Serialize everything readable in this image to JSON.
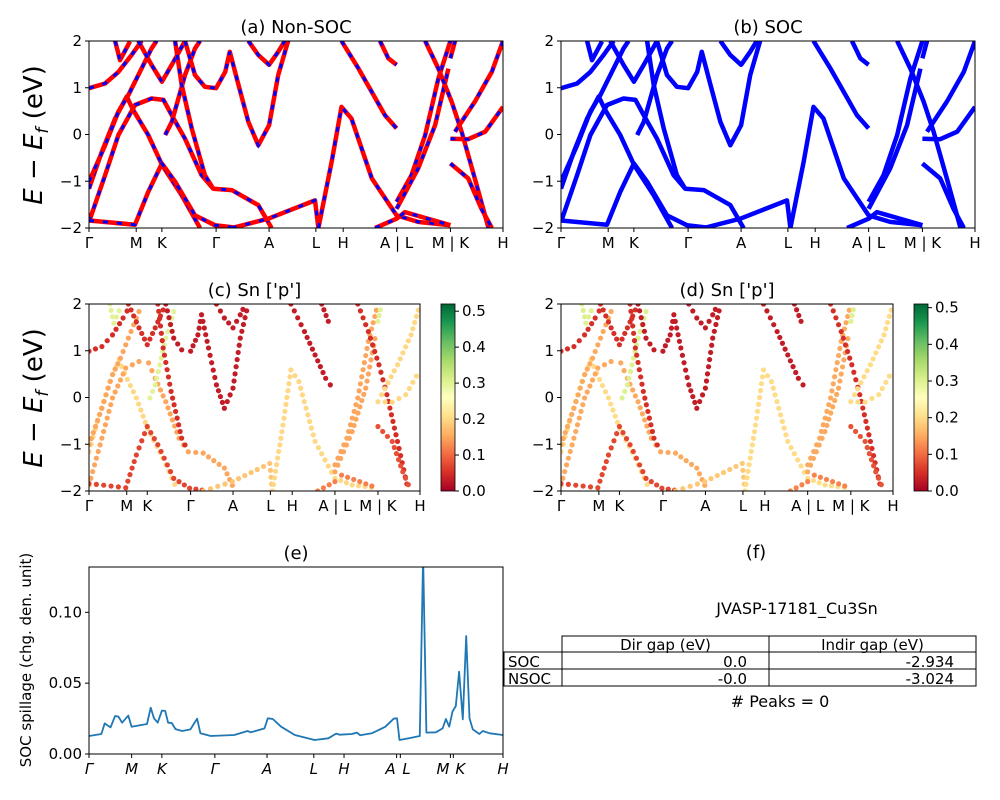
{
  "chart_data": [
    {
      "panel": "a",
      "type": "line",
      "title": "(a) Non-SOC",
      "ylabel_parts": [
        "E − E",
        "f",
        " (eV)"
      ],
      "ylim": [
        -2,
        2
      ],
      "yticks": [
        {
          "v": -2,
          "label": "−2"
        },
        {
          "v": -1,
          "label": "−1"
        },
        {
          "v": 0,
          "label": "0"
        },
        {
          "v": 1,
          "label": "1"
        },
        {
          "v": 2,
          "label": "2"
        }
      ],
      "xticks": [
        {
          "k": 0,
          "label": "Γ"
        },
        {
          "k": 0.114,
          "label": "M"
        },
        {
          "k": 0.176,
          "label": "K"
        },
        {
          "k": 0.307,
          "label": "Γ"
        },
        {
          "k": 0.435,
          "label": "A"
        },
        {
          "k": 0.548,
          "label": "L"
        },
        {
          "k": 0.614,
          "label": "H"
        },
        {
          "k": 0.743,
          "label": "A | L"
        },
        {
          "k": 0.873,
          "label": "M | K"
        },
        {
          "k": 1.0,
          "label": "H"
        }
      ],
      "colors": {
        "line": "#ff0000",
        "dash": "#0000ff"
      },
      "bands": [
        {
          "k": [
            0,
            0.039,
            0.071,
            0.103,
            0.127
          ],
          "E": [
            0.99,
            1.09,
            1.34,
            1.7,
            2.0
          ],
          "sn_p": 0.05
        },
        {
          "k": [
            0,
            0.031,
            0.063,
            0.091,
            0.107,
            0.143,
            0.177,
            0.224,
            0.268
          ],
          "E": [
            -1.16,
            -0.37,
            0.34,
            0.81,
            0.52,
            -0.01,
            -0.66,
            -1.3,
            -2.0
          ],
          "sn_p": 0.2
        },
        {
          "k": [
            0,
            0.039,
            0.071,
            0.111,
            0.151,
            0.18,
            0.2,
            0.232,
            0.272,
            0.3,
            0.345,
            0.409,
            0.441
          ],
          "E": [
            -1.87,
            -0.87,
            -0.01,
            0.63,
            0.77,
            0.74,
            0.41,
            -0.09,
            -0.87,
            -1.16,
            -1.19,
            -1.51,
            -2.0
          ],
          "sn_p": 0.15
        },
        {
          "k": [
            0,
            0.111,
            0.143,
            0.176,
            0.208,
            0.256,
            0.304,
            0.361
          ],
          "E": [
            -1.84,
            -1.93,
            -1.23,
            -0.62,
            -1.01,
            -1.73,
            -1.94,
            -2.0
          ],
          "sn_p": 0.07
        },
        {
          "k": [
            0,
            0.039,
            0.071,
            0.095,
            0.119,
            0.151,
            0.163
          ],
          "E": [
            -1.01,
            -0.23,
            0.49,
            0.84,
            1.27,
            1.84,
            2.0
          ],
          "sn_p": 0.15
        },
        {
          "k": [
            0.063,
            0.075,
            0.099
          ],
          "E": [
            2.0,
            1.59,
            1.99
          ],
          "sn_p": 0.3
        },
        {
          "k": [
            0.119,
            0.151,
            0.176,
            0.2,
            0.232
          ],
          "E": [
            2.0,
            1.49,
            1.13,
            1.49,
            2.0
          ],
          "sn_p": 0.05
        },
        {
          "k": [
            0.184,
            0.2,
            0.232,
            0.256,
            0.268
          ],
          "E": [
            -0.01,
            0.27,
            1.27,
            1.84,
            2.0
          ],
          "sn_p": 0.3
        },
        {
          "k": [
            0.208,
            0.224,
            0.248,
            0.28,
            0.3
          ],
          "E": [
            2.0,
            1.06,
            0.13,
            -0.87,
            -1.16
          ],
          "sn_p": 0.05
        },
        {
          "k": [
            0.232,
            0.256,
            0.28,
            0.307,
            0.329,
            0.34,
            0.361,
            0.385,
            0.409,
            0.435,
            0.457,
            0.481
          ],
          "E": [
            2.0,
            1.27,
            1.02,
            0.99,
            1.34,
            1.77,
            1.06,
            0.27,
            -0.23,
            0.2,
            1.27,
            2.0
          ],
          "sn_p": 0.03
        },
        {
          "k": [
            0.385,
            0.409,
            0.435,
            0.457,
            0.473
          ],
          "E": [
            2.0,
            1.7,
            1.49,
            1.77,
            2.0
          ],
          "sn_p": 0.03
        },
        {
          "k": [
            0.345,
            0.433,
            0.546,
            0.554
          ],
          "E": [
            -2.0,
            -1.8,
            -1.41,
            -2.0
          ],
          "sn_p": 0.18
        },
        {
          "k": [
            0.554,
            0.586,
            0.61,
            0.634,
            0.683,
            0.743,
            0.795,
            0.873
          ],
          "E": [
            -2.0,
            -0.59,
            0.59,
            0.34,
            -0.94,
            -1.73,
            -1.87,
            -1.94
          ],
          "sn_p": 0.2
        },
        {
          "k": [
            0.61,
            0.651,
            0.683,
            0.715,
            0.743
          ],
          "E": [
            2.0,
            1.41,
            0.91,
            0.41,
            0.13
          ],
          "sn_p": 0.03
        },
        {
          "k": [
            0.703,
            0.723,
            0.743
          ],
          "E": [
            2.0,
            1.63,
            1.49
          ],
          "sn_p": 0.03
        },
        {
          "k": [
            0.743,
            0.779,
            0.812,
            0.844,
            0.873
          ],
          "E": [
            -1.44,
            -0.87,
            -0.01,
            1.2,
            2.0
          ],
          "sn_p": 0.15
        },
        {
          "k": [
            0.743,
            0.795,
            0.836,
            0.868
          ],
          "E": [
            -1.59,
            -0.73,
            0.2,
            1.41
          ],
          "sn_p": 0.15
        },
        {
          "k": [
            0.812,
            0.844,
            0.876,
            0.9,
            0.932,
            0.965
          ],
          "E": [
            2.0,
            1.41,
            0.7,
            0.06,
            -0.94,
            -2.0
          ],
          "sn_p": 0.05
        },
        {
          "k": [
            0.873,
            0.916,
            0.957,
            1.0
          ],
          "E": [
            -0.09,
            -0.1,
            0.06,
            0.59
          ],
          "sn_p": 0.2
        },
        {
          "k": [
            0.873,
            0.916,
            0.948,
            0.973
          ],
          "E": [
            -0.62,
            -0.94,
            -1.59,
            -2.0
          ],
          "sn_p": 0.08
        },
        {
          "k": [
            0.884,
            0.932,
            0.973,
            1.0
          ],
          "E": [
            0.06,
            0.7,
            1.34,
            2.0
          ],
          "sn_p": 0.2
        },
        {
          "k": [
            0.873,
            0.884
          ],
          "E": [
            1.63,
            2.0
          ],
          "sn_p": 0.3
        },
        {
          "k": [
            0.691,
            0.743,
            0.763,
            0.873
          ],
          "E": [
            -2.0,
            -1.8,
            -1.66,
            -1.94
          ],
          "sn_p": 0.12
        }
      ]
    },
    {
      "panel": "b",
      "type": "line",
      "title": "(b) SOC",
      "bands_from_panel": "a",
      "colors": {
        "line": "#0000ff"
      }
    },
    {
      "panel": "c",
      "type": "scatter",
      "title": "(c)  Sn ['p']",
      "ylabel_parts": [
        "E − E",
        "f",
        " (eV)"
      ],
      "bands_from_panel": "a",
      "colormap": "RdYlGn",
      "colorbar": {
        "min": 0,
        "max": 0.52,
        "ticks": [
          {
            "v": 0,
            "label": "0.0"
          },
          {
            "v": 0.1,
            "label": "0.1"
          },
          {
            "v": 0.2,
            "label": "0.2"
          },
          {
            "v": 0.3,
            "label": "0.3"
          },
          {
            "v": 0.4,
            "label": "0.4"
          },
          {
            "v": 0.5,
            "label": "0.5"
          }
        ]
      }
    },
    {
      "panel": "d",
      "type": "scatter",
      "title": "(d) Sn ['p']",
      "bands_from_panel": "a",
      "colormap": "RdYlGn",
      "colorbar": {
        "min": 0,
        "max": 0.51,
        "ticks": [
          {
            "v": 0,
            "label": "0.0"
          },
          {
            "v": 0.1,
            "label": "0.1"
          },
          {
            "v": 0.2,
            "label": "0.2"
          },
          {
            "v": 0.3,
            "label": "0.3"
          },
          {
            "v": 0.4,
            "label": "0.4"
          },
          {
            "v": 0.5,
            "label": "0.5"
          }
        ]
      }
    },
    {
      "panel": "e",
      "type": "line",
      "title": "(e)",
      "ylabel": "SOC spillage (chg. den. unit)",
      "ylim": [
        0,
        0.132
      ],
      "yticks": [
        {
          "v": 0,
          "label": "0.00"
        },
        {
          "v": 0.05,
          "label": "0.05"
        },
        {
          "v": 0.1,
          "label": "0.10"
        }
      ],
      "xticks": [
        {
          "k": 0,
          "label": "Γ"
        },
        {
          "k": 0.103,
          "label": "M"
        },
        {
          "k": 0.176,
          "label": "K"
        },
        {
          "k": 0.304,
          "label": "Γ"
        },
        {
          "k": 0.43,
          "label": "A"
        },
        {
          "k": 0.543,
          "label": "L"
        },
        {
          "k": 0.616,
          "label": "H"
        },
        {
          "k": 0.743,
          "label": "A"
        },
        {
          "k": 0.752,
          "label": "L"
        },
        {
          "k": 0.873,
          "label": "M"
        },
        {
          "k": 0.88,
          "label": "K"
        },
        {
          "k": 1.0,
          "label": "H"
        }
      ],
      "color": "#1f77b4",
      "x": [
        0,
        0.03,
        0.038,
        0.052,
        0.063,
        0.071,
        0.08,
        0.095,
        0.103,
        0.14,
        0.149,
        0.157,
        0.166,
        0.176,
        0.184,
        0.191,
        0.2,
        0.209,
        0.225,
        0.245,
        0.261,
        0.269,
        0.294,
        0.351,
        0.383,
        0.391,
        0.424,
        0.432,
        0.444,
        0.464,
        0.497,
        0.545,
        0.578,
        0.597,
        0.606,
        0.635,
        0.647,
        0.655,
        0.683,
        0.716,
        0.736,
        0.744,
        0.75,
        0.773,
        0.799,
        0.807,
        0.815,
        0.838,
        0.854,
        0.862,
        0.87,
        0.878,
        0.886,
        0.894,
        0.903,
        0.911,
        0.919,
        0.927,
        0.943,
        0.951,
        0.968,
        1.0
      ],
      "y": [
        0.0127,
        0.0141,
        0.0216,
        0.0188,
        0.0268,
        0.0264,
        0.0221,
        0.0271,
        0.0193,
        0.0212,
        0.0327,
        0.0252,
        0.0221,
        0.0306,
        0.0304,
        0.0221,
        0.0219,
        0.0176,
        0.0162,
        0.0174,
        0.0249,
        0.0146,
        0.0127,
        0.0134,
        0.0162,
        0.0153,
        0.0181,
        0.0252,
        0.0247,
        0.0193,
        0.0134,
        0.0099,
        0.0111,
        0.0144,
        0.0136,
        0.0141,
        0.0151,
        0.0132,
        0.0146,
        0.0193,
        0.0249,
        0.0252,
        0.0099,
        0.0111,
        0.0127,
        0.14,
        0.0151,
        0.0153,
        0.0181,
        0.0247,
        0.0193,
        0.0299,
        0.0339,
        0.0581,
        0.0245,
        0.0833,
        0.0252,
        0.0174,
        0.0141,
        0.0162,
        0.0146,
        0.0134
      ]
    },
    {
      "panel": "f",
      "type": "table",
      "title": "(f)",
      "caption": "JVASP-17181_Cu3Sn",
      "columns": [
        "Dir gap (eV)",
        "Indir gap (eV)"
      ],
      "rows": [
        {
          "label": "SOC",
          "values": [
            "0.0",
            "-2.934"
          ]
        },
        {
          "label": "NSOC",
          "values": [
            "-0.0",
            "-3.024"
          ]
        }
      ],
      "footer": "# Peaks = 0"
    }
  ]
}
